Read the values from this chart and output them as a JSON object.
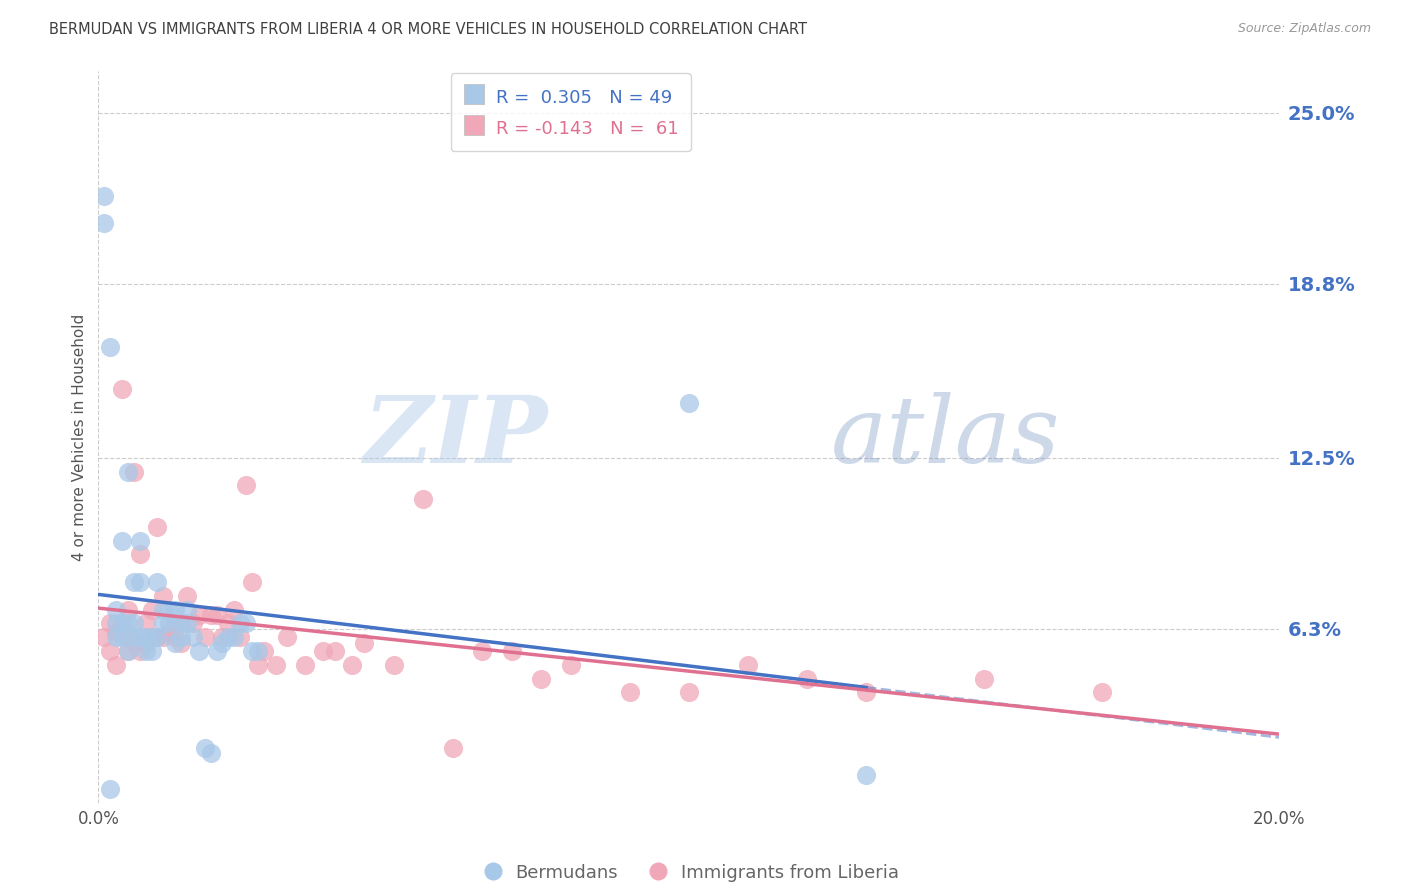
{
  "title": "BERMUDAN VS IMMIGRANTS FROM LIBERIA 4 OR MORE VEHICLES IN HOUSEHOLD CORRELATION CHART",
  "source": "Source: ZipAtlas.com",
  "ylabel": "4 or more Vehicles in Household",
  "x_min": 0.0,
  "x_max": 0.2,
  "y_min": 0.0,
  "y_max": 0.265,
  "x_ticks": [
    0.0,
    0.04,
    0.08,
    0.12,
    0.16,
    0.2
  ],
  "y_ticks_right": [
    0.063,
    0.125,
    0.188,
    0.25
  ],
  "y_tick_labels_right": [
    "6.3%",
    "12.5%",
    "18.8%",
    "25.0%"
  ],
  "blue_R": "0.305",
  "blue_N": "49",
  "pink_R": "-0.143",
  "pink_N": "61",
  "blue_color": "#a8c8e8",
  "pink_color": "#f0a8b8",
  "blue_line_color": "#4472c4",
  "pink_line_color": "#e07090",
  "legend_label_blue": "Bermudans",
  "legend_label_pink": "Immigrants from Liberia",
  "watermark_zip": "ZIP",
  "watermark_atlas": "atlas",
  "background_color": "#ffffff",
  "grid_color": "#cccccc",
  "title_color": "#404040",
  "blue_scatter_x": [
    0.001,
    0.001,
    0.002,
    0.002,
    0.003,
    0.003,
    0.003,
    0.004,
    0.004,
    0.004,
    0.005,
    0.005,
    0.005,
    0.006,
    0.006,
    0.006,
    0.007,
    0.007,
    0.007,
    0.008,
    0.008,
    0.009,
    0.009,
    0.01,
    0.01,
    0.011,
    0.011,
    0.012,
    0.012,
    0.013,
    0.013,
    0.014,
    0.014,
    0.015,
    0.015,
    0.016,
    0.017,
    0.018,
    0.019,
    0.02,
    0.021,
    0.022,
    0.023,
    0.024,
    0.025,
    0.026,
    0.027,
    0.1,
    0.13
  ],
  "blue_scatter_y": [
    0.21,
    0.22,
    0.165,
    0.005,
    0.06,
    0.065,
    0.07,
    0.06,
    0.065,
    0.095,
    0.055,
    0.065,
    0.12,
    0.06,
    0.065,
    0.08,
    0.06,
    0.08,
    0.095,
    0.055,
    0.06,
    0.055,
    0.06,
    0.08,
    0.06,
    0.065,
    0.07,
    0.065,
    0.07,
    0.058,
    0.07,
    0.065,
    0.06,
    0.065,
    0.07,
    0.06,
    0.055,
    0.02,
    0.018,
    0.055,
    0.058,
    0.06,
    0.06,
    0.065,
    0.065,
    0.055,
    0.055,
    0.145,
    0.01
  ],
  "pink_scatter_x": [
    0.001,
    0.002,
    0.002,
    0.003,
    0.003,
    0.004,
    0.004,
    0.005,
    0.005,
    0.005,
    0.006,
    0.006,
    0.007,
    0.007,
    0.008,
    0.008,
    0.009,
    0.009,
    0.01,
    0.01,
    0.011,
    0.011,
    0.012,
    0.013,
    0.013,
    0.014,
    0.015,
    0.016,
    0.017,
    0.018,
    0.019,
    0.02,
    0.021,
    0.022,
    0.023,
    0.024,
    0.025,
    0.026,
    0.027,
    0.028,
    0.03,
    0.032,
    0.035,
    0.038,
    0.04,
    0.043,
    0.045,
    0.05,
    0.055,
    0.06,
    0.065,
    0.07,
    0.075,
    0.08,
    0.09,
    0.1,
    0.11,
    0.12,
    0.13,
    0.15,
    0.17
  ],
  "pink_scatter_y": [
    0.06,
    0.055,
    0.065,
    0.05,
    0.062,
    0.063,
    0.15,
    0.055,
    0.06,
    0.07,
    0.058,
    0.12,
    0.055,
    0.09,
    0.058,
    0.065,
    0.06,
    0.07,
    0.06,
    0.1,
    0.06,
    0.075,
    0.062,
    0.06,
    0.065,
    0.058,
    0.075,
    0.065,
    0.068,
    0.06,
    0.068,
    0.068,
    0.06,
    0.065,
    0.07,
    0.06,
    0.115,
    0.08,
    0.05,
    0.055,
    0.05,
    0.06,
    0.05,
    0.055,
    0.055,
    0.05,
    0.058,
    0.05,
    0.11,
    0.02,
    0.055,
    0.055,
    0.045,
    0.05,
    0.04,
    0.04,
    0.05,
    0.045,
    0.04,
    0.045,
    0.04
  ]
}
